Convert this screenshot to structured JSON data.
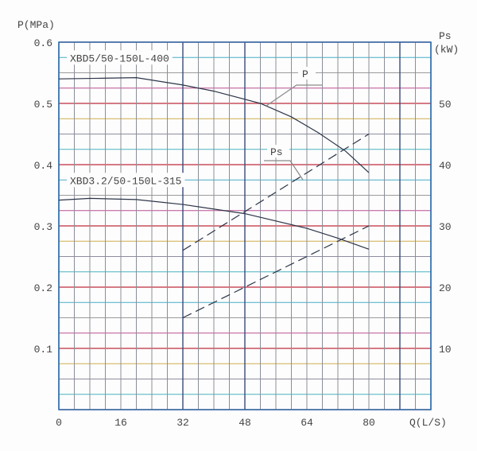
{
  "chart_data": {
    "type": "line",
    "xlabel": "Q(L/S)",
    "ylabel_left": "P(MPa)",
    "ylabel_right_line1": "Ps",
    "ylabel_right_line2": "(kW)",
    "xlim": [
      0,
      96
    ],
    "ylim_left": [
      0,
      0.6
    ],
    "ylim_right": [
      0,
      60
    ],
    "grid": true,
    "x_ticks": [
      "0",
      "16",
      "32",
      "48",
      "64",
      "80"
    ],
    "x_tick_values": [
      0,
      16,
      32,
      48,
      64,
      80
    ],
    "y_left_ticks": [
      "0.1",
      "0.2",
      "0.3",
      "0.4",
      "0.5",
      "0.6"
    ],
    "y_left_tick_values": [
      0.1,
      0.2,
      0.3,
      0.4,
      0.5,
      0.6
    ],
    "y_right_ticks": [
      "10",
      "20",
      "30",
      "40",
      "50"
    ],
    "y_right_tick_values": [
      10,
      20,
      30,
      40,
      50
    ],
    "models": [
      {
        "label": "XBD5/50-150L-400",
        "label_level": 0.575
      },
      {
        "label": "XBD3.2/50-150L-315",
        "label_level": 0.375
      }
    ],
    "curve_labels": {
      "p": "P",
      "ps": "Ps"
    },
    "series": [
      {
        "model": "XBD5/50-150L-400",
        "quantity": "P",
        "unit": "MPa",
        "style": "solid",
        "x": [
          0,
          10,
          20,
          32,
          40,
          52,
          60,
          67,
          74,
          80
        ],
        "y": [
          0.54,
          0.541,
          0.542,
          0.53,
          0.52,
          0.5,
          0.478,
          0.452,
          0.422,
          0.387
        ]
      },
      {
        "model": "XBD3.2/50-150L-315",
        "quantity": "P",
        "unit": "MPa",
        "style": "solid",
        "x": [
          0,
          8,
          20,
          32,
          48,
          64,
          72,
          80
        ],
        "y": [
          0.342,
          0.345,
          0.343,
          0.335,
          0.32,
          0.296,
          0.28,
          0.262
        ]
      },
      {
        "model": "XBD5/50-150L-400",
        "quantity": "Ps",
        "unit": "kW",
        "style": "dashed",
        "x": [
          32,
          80
        ],
        "y": [
          26,
          45
        ]
      },
      {
        "model": "XBD3.2/50-150L-315",
        "quantity": "Ps",
        "unit": "kW",
        "style": "dashed",
        "x": [
          32,
          80
        ],
        "y": [
          15,
          30
        ]
      }
    ]
  }
}
